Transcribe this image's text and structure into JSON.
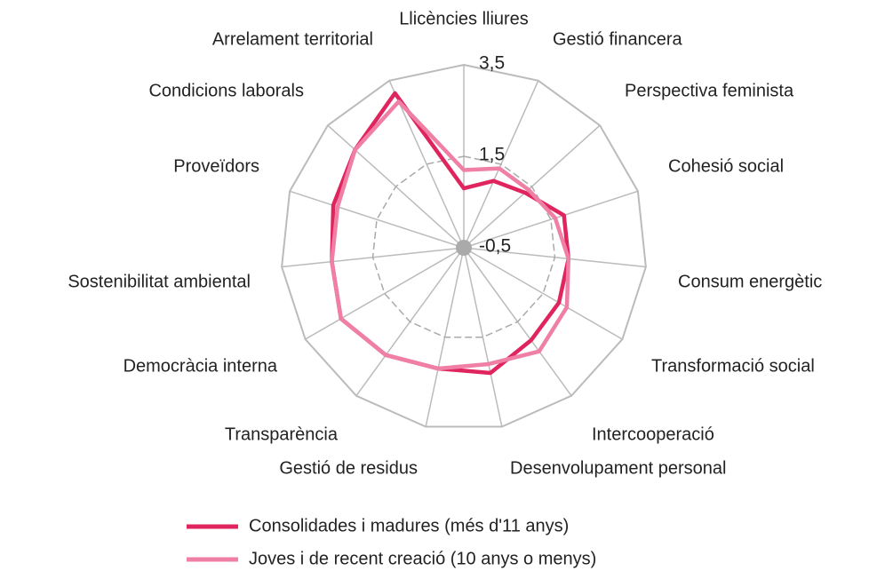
{
  "chart_data": {
    "type": "radar",
    "categories": [
      "Llicències lliures",
      "Gestió financera",
      "Perspectiva feminista",
      "Cohesió social",
      "Consum energètic",
      "Transformació social",
      "Intercooperació",
      "Desenvolupament personal",
      "Gestió de residus",
      "Transparència",
      "Democràcia interna",
      "Sostenibilitat ambiental",
      "Proveïdors",
      "Condicions laborals",
      "Arrelament territorial"
    ],
    "series": [
      {
        "name": "Consolidades i madures (més d'11 anys)",
        "color": "#e0245e",
        "values": [
          0.8,
          1.1,
          1.3,
          1.8,
          1.8,
          1.9,
          2.0,
          2.3,
          2.2,
          2.4,
          2.6,
          2.4,
          2.5,
          2.7,
          3.2
        ]
      },
      {
        "name": "Joves i de recent creació (10 anys o menys)",
        "color": "#f07fa6",
        "values": [
          1.2,
          1.4,
          1.4,
          1.6,
          1.8,
          2.1,
          2.3,
          2.1,
          2.2,
          2.4,
          2.6,
          2.4,
          2.4,
          2.7,
          3.0
        ]
      }
    ],
    "ylim": [
      -0.5,
      3.5
    ],
    "yticks": [
      {
        "value": -0.5,
        "label": "-0,5"
      },
      {
        "value": 1.5,
        "label": "1,5"
      },
      {
        "value": 3.5,
        "label": "3,5"
      }
    ],
    "grid": true
  }
}
